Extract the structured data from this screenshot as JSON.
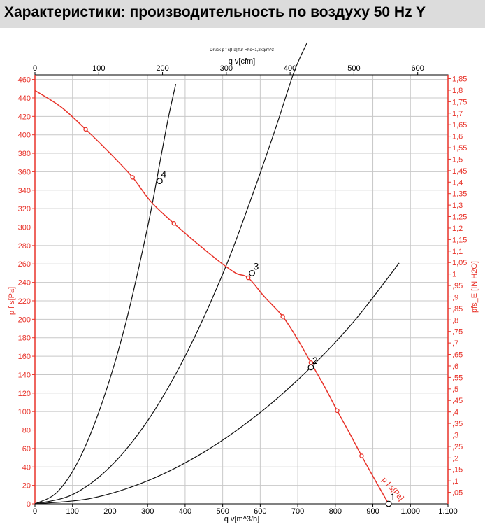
{
  "header": {
    "title": "Характеристики: производительность по воздуху 50 Hz Y"
  },
  "chart_data": {
    "type": "line",
    "note": "Druck p f s[Pa] für Rho=1,2kg/m^3",
    "x_bottom": {
      "label": "q v[m^3/h]",
      "range": [
        0,
        1100
      ],
      "ticks": [
        0,
        100,
        200,
        300,
        400,
        500,
        600,
        700,
        800,
        900,
        1000,
        1100
      ],
      "tick_labels": [
        "0",
        "100",
        "200",
        "300",
        "400",
        "500",
        "600",
        "700",
        "800",
        "900",
        "1.000",
        "1.100"
      ]
    },
    "x_top": {
      "label": "q v[cfm]",
      "range": [
        0,
        647.4
      ],
      "ticks": [
        0,
        100,
        200,
        300,
        400,
        500,
        600
      ],
      "tick_labels": [
        "0",
        "100",
        "200",
        "300",
        "400",
        "500",
        "600"
      ]
    },
    "y_left": {
      "label": "p f s[Pa]",
      "range": [
        0,
        465
      ],
      "ticks": [
        0,
        20,
        40,
        60,
        80,
        100,
        120,
        140,
        160,
        180,
        200,
        220,
        240,
        260,
        280,
        300,
        320,
        340,
        360,
        380,
        400,
        420,
        440,
        460
      ],
      "tick_labels": [
        "0",
        "20",
        "40",
        "60",
        "80",
        "100",
        "120",
        "140",
        "160",
        "180",
        "200",
        "220",
        "240",
        "260",
        "280",
        "300",
        "320",
        "340",
        "360",
        "380",
        "400",
        "420",
        "440",
        "460"
      ]
    },
    "y_right": {
      "label": "pfs_E [IN H2O]",
      "ticks": [
        0.05,
        0.1,
        0.15,
        0.2,
        0.25,
        0.3,
        0.35,
        0.4,
        0.45,
        0.5,
        0.55,
        0.6,
        0.65,
        0.7,
        0.75,
        0.8,
        0.85,
        0.9,
        0.95,
        1.0,
        1.05,
        1.1,
        1.15,
        1.2,
        1.25,
        1.3,
        1.35,
        1.4,
        1.45,
        1.5,
        1.55,
        1.6,
        1.65,
        1.7,
        1.75,
        1.8,
        1.85
      ],
      "tick_labels": [
        ",05",
        ",1",
        ",15",
        ",2",
        ",25",
        ",3",
        ",35",
        ",4",
        ",45",
        ",5",
        ",55",
        ",6",
        ",65",
        ",7",
        ",75",
        ",8",
        ",85",
        ",9",
        ",95",
        "1",
        "1,05",
        "1,1",
        "1,15",
        "1,2",
        "1,25",
        "1,3",
        "1,35",
        "1,4",
        "1,45",
        "1,5",
        "1,55",
        "1,6",
        "1,65",
        "1,7",
        "1,75",
        "1,8",
        "1,85"
      ]
    },
    "fan_curve": {
      "name": "p f s[Pa]",
      "color": "#e8332a",
      "x": [
        0,
        70,
        135,
        200,
        260,
        310,
        370,
        430,
        490,
        535,
        568,
        610,
        660,
        700,
        735,
        770,
        805,
        840,
        870,
        900,
        925,
        942
      ],
      "y": [
        448,
        430,
        406,
        380,
        354,
        327,
        304,
        283,
        263,
        250,
        245,
        225,
        203,
        178,
        153,
        128,
        101,
        75,
        52,
        30,
        12,
        0
      ],
      "marker_indices": [
        2,
        4,
        6,
        10,
        12,
        14,
        16,
        18
      ]
    },
    "system_curves": [
      {
        "name": "curve-4",
        "color": "#111111",
        "x": [
          0,
          60,
          120,
          180,
          240,
          300,
          335,
          355,
          375
        ],
        "y": [
          0,
          13,
          50,
          111,
          193,
          300,
          375,
          418,
          455
        ]
      },
      {
        "name": "curve-3",
        "color": "#111111",
        "x": [
          0,
          100,
          200,
          300,
          400,
          500,
          575,
          640,
          690,
          725
        ],
        "y": [
          0,
          10,
          40,
          90,
          160,
          249,
          330,
          406,
          468,
          500
        ]
      },
      {
        "name": "curve-2",
        "color": "#111111",
        "x": [
          0,
          150,
          300,
          450,
          600,
          735,
          850,
          970
        ],
        "y": [
          0,
          6,
          25,
          56,
          99,
          148,
          198,
          261
        ]
      }
    ],
    "operating_points": [
      {
        "label": "4",
        "x": 332,
        "y": 350
      },
      {
        "label": "3",
        "x": 578,
        "y": 250
      },
      {
        "label": "2",
        "x": 735,
        "y": 148
      },
      {
        "label": "1",
        "x": 942,
        "y": 0
      }
    ],
    "fan_curve_label": "p f s[Pa]",
    "grid": true
  }
}
